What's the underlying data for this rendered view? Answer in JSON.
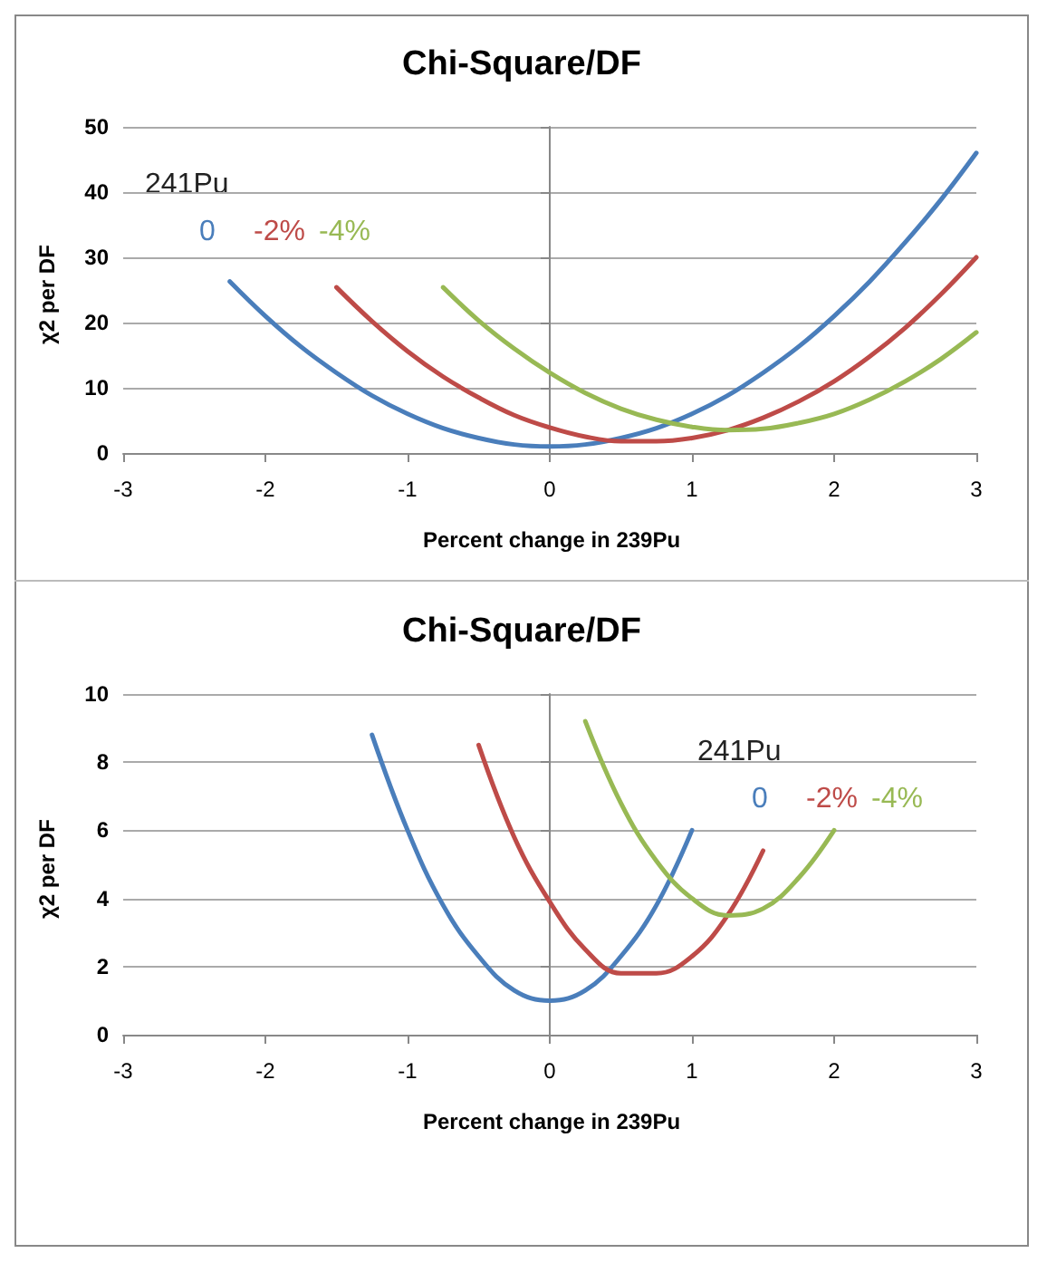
{
  "chart_data": [
    {
      "type": "line",
      "title": "Chi-Square/DF",
      "xlabel": "Percent change in 239Pu",
      "ylabel": "χ2 per DF",
      "legend_title": "241Pu",
      "legend": "top left",
      "grid": "y",
      "marker": "none",
      "line_style": "solid",
      "x": [
        -2.25,
        -2,
        -1.75,
        -1.5,
        -1.25,
        -1,
        -0.75,
        -0.5,
        -0.25,
        0,
        0.25,
        0.5,
        0.75,
        1,
        1.25,
        1.5,
        1.75,
        2,
        2.25,
        2.5,
        2.75,
        3
      ],
      "xlim": [
        -3,
        3
      ],
      "xticks": [
        -3,
        -2,
        -1,
        0,
        1,
        2,
        3
      ],
      "ylim": [
        0,
        50
      ],
      "yticks": [
        0,
        10,
        20,
        30,
        40,
        50
      ],
      "series": [
        {
          "name": "0",
          "color": "#4a7ebb",
          "values": [
            26.3,
            21,
            16.3,
            12.3,
            8.8,
            6,
            3.8,
            2.3,
            1.3,
            1,
            1.3,
            2.3,
            3.8,
            6,
            8.8,
            12.3,
            16.3,
            21,
            26.3,
            32.3,
            38.8,
            46
          ]
        },
        {
          "name": "-2%",
          "color": "#be4b48",
          "values": [
            null,
            null,
            null,
            25.4,
            20.2,
            15.6,
            11.7,
            8.5,
            5.8,
            3.9,
            2.5,
            1.8,
            1.8,
            2.3,
            3.5,
            5.4,
            7.9,
            11,
            14.8,
            19.2,
            24.3,
            30
          ]
        },
        {
          "name": "-4%",
          "color": "#98b954",
          "values": [
            null,
            null,
            null,
            null,
            null,
            null,
            25.4,
            20.3,
            16,
            12.3,
            9.2,
            6.8,
            5.1,
            4,
            3.5,
            3.7,
            4.6,
            6,
            8.2,
            11,
            14.4,
            18.5
          ]
        }
      ]
    },
    {
      "type": "line",
      "title": "Chi-Square/DF",
      "xlabel": "Percent change in 239Pu",
      "ylabel": "χ2 per DF",
      "legend_title": "241Pu",
      "legend": "top right",
      "grid": "y",
      "marker": "none",
      "line_style": "solid",
      "x": [
        -1.25,
        -1,
        -0.75,
        -0.5,
        -0.25,
        0,
        0.25,
        0.5,
        0.75,
        1,
        1.25,
        1.5,
        1.75,
        2
      ],
      "xlim": [
        -3,
        3
      ],
      "xticks": [
        -3,
        -2,
        -1,
        0,
        1,
        2,
        3
      ],
      "ylim": [
        0,
        10
      ],
      "yticks": [
        0,
        2,
        4,
        6,
        8,
        10
      ],
      "series": [
        {
          "name": "0",
          "color": "#4a7ebb",
          "values": [
            8.8,
            6,
            3.8,
            2.3,
            1.3,
            1,
            1.3,
            2.3,
            3.8,
            6,
            null,
            null,
            null,
            null
          ]
        },
        {
          "name": "-2%",
          "color": "#be4b48",
          "values": [
            null,
            null,
            null,
            8.5,
            5.8,
            3.9,
            2.5,
            1.8,
            1.8,
            2.3,
            3.5,
            5.4,
            null,
            null
          ]
        },
        {
          "name": "-4%",
          "color": "#98b954",
          "values": [
            null,
            null,
            null,
            null,
            null,
            null,
            9.2,
            6.8,
            5.1,
            4,
            3.5,
            3.7,
            4.6,
            6
          ]
        }
      ]
    }
  ]
}
